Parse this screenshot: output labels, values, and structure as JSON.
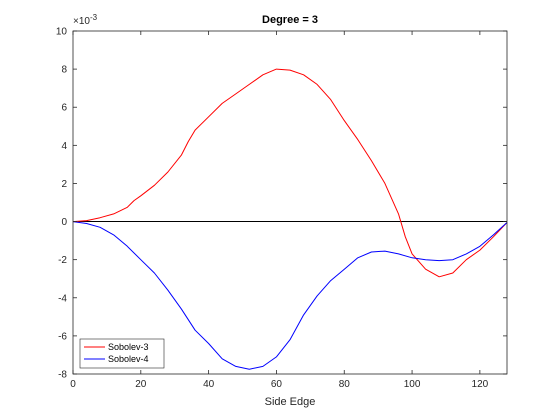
{
  "chart_data": {
    "type": "line",
    "title": "Degree = 3",
    "xlabel": "Side Edge",
    "ylabel": "",
    "y_exponent_label": "×10",
    "y_exponent_power": "-3",
    "xlim": [
      0,
      128
    ],
    "ylim": [
      -8,
      10
    ],
    "xticks": [
      0,
      20,
      40,
      60,
      80,
      100,
      120
    ],
    "yticks": [
      -8,
      -6,
      -4,
      -2,
      0,
      2,
      4,
      6,
      8,
      10
    ],
    "grid": false,
    "legend_position": "bottom-left",
    "zero_line": true,
    "series": [
      {
        "name": "Sobolev-3",
        "color": "#ff0000",
        "points": [
          [
            0,
            0
          ],
          [
            4,
            0.05
          ],
          [
            8,
            0.2
          ],
          [
            12,
            0.4
          ],
          [
            16,
            0.75
          ],
          [
            18,
            1.1
          ],
          [
            20,
            1.35
          ],
          [
            24,
            1.9
          ],
          [
            28,
            2.6
          ],
          [
            32,
            3.5
          ],
          [
            34,
            4.2
          ],
          [
            36,
            4.8
          ],
          [
            40,
            5.5
          ],
          [
            44,
            6.2
          ],
          [
            48,
            6.7
          ],
          [
            52,
            7.2
          ],
          [
            56,
            7.7
          ],
          [
            60,
            8.0
          ],
          [
            64,
            7.95
          ],
          [
            68,
            7.7
          ],
          [
            72,
            7.2
          ],
          [
            76,
            6.4
          ],
          [
            80,
            5.3
          ],
          [
            84,
            4.3
          ],
          [
            88,
            3.2
          ],
          [
            92,
            2.0
          ],
          [
            96,
            0.4
          ],
          [
            98,
            -0.8
          ],
          [
            100,
            -1.7
          ],
          [
            104,
            -2.5
          ],
          [
            108,
            -2.9
          ],
          [
            112,
            -2.7
          ],
          [
            116,
            -2.0
          ],
          [
            120,
            -1.5
          ],
          [
            124,
            -0.8
          ],
          [
            128,
            -0.05
          ]
        ]
      },
      {
        "name": "Sobolev-4",
        "color": "#0000ff",
        "points": [
          [
            0,
            0
          ],
          [
            4,
            -0.1
          ],
          [
            8,
            -0.3
          ],
          [
            12,
            -0.7
          ],
          [
            16,
            -1.3
          ],
          [
            20,
            -2.0
          ],
          [
            24,
            -2.7
          ],
          [
            28,
            -3.6
          ],
          [
            32,
            -4.6
          ],
          [
            36,
            -5.7
          ],
          [
            40,
            -6.4
          ],
          [
            44,
            -7.2
          ],
          [
            48,
            -7.6
          ],
          [
            52,
            -7.75
          ],
          [
            56,
            -7.6
          ],
          [
            60,
            -7.1
          ],
          [
            64,
            -6.2
          ],
          [
            68,
            -4.9
          ],
          [
            72,
            -3.9
          ],
          [
            76,
            -3.1
          ],
          [
            80,
            -2.5
          ],
          [
            84,
            -1.9
          ],
          [
            88,
            -1.6
          ],
          [
            92,
            -1.55
          ],
          [
            96,
            -1.7
          ],
          [
            100,
            -1.9
          ],
          [
            104,
            -2.0
          ],
          [
            108,
            -2.05
          ],
          [
            112,
            -2.0
          ],
          [
            116,
            -1.7
          ],
          [
            120,
            -1.3
          ],
          [
            124,
            -0.7
          ],
          [
            128,
            -0.05
          ]
        ]
      }
    ]
  }
}
